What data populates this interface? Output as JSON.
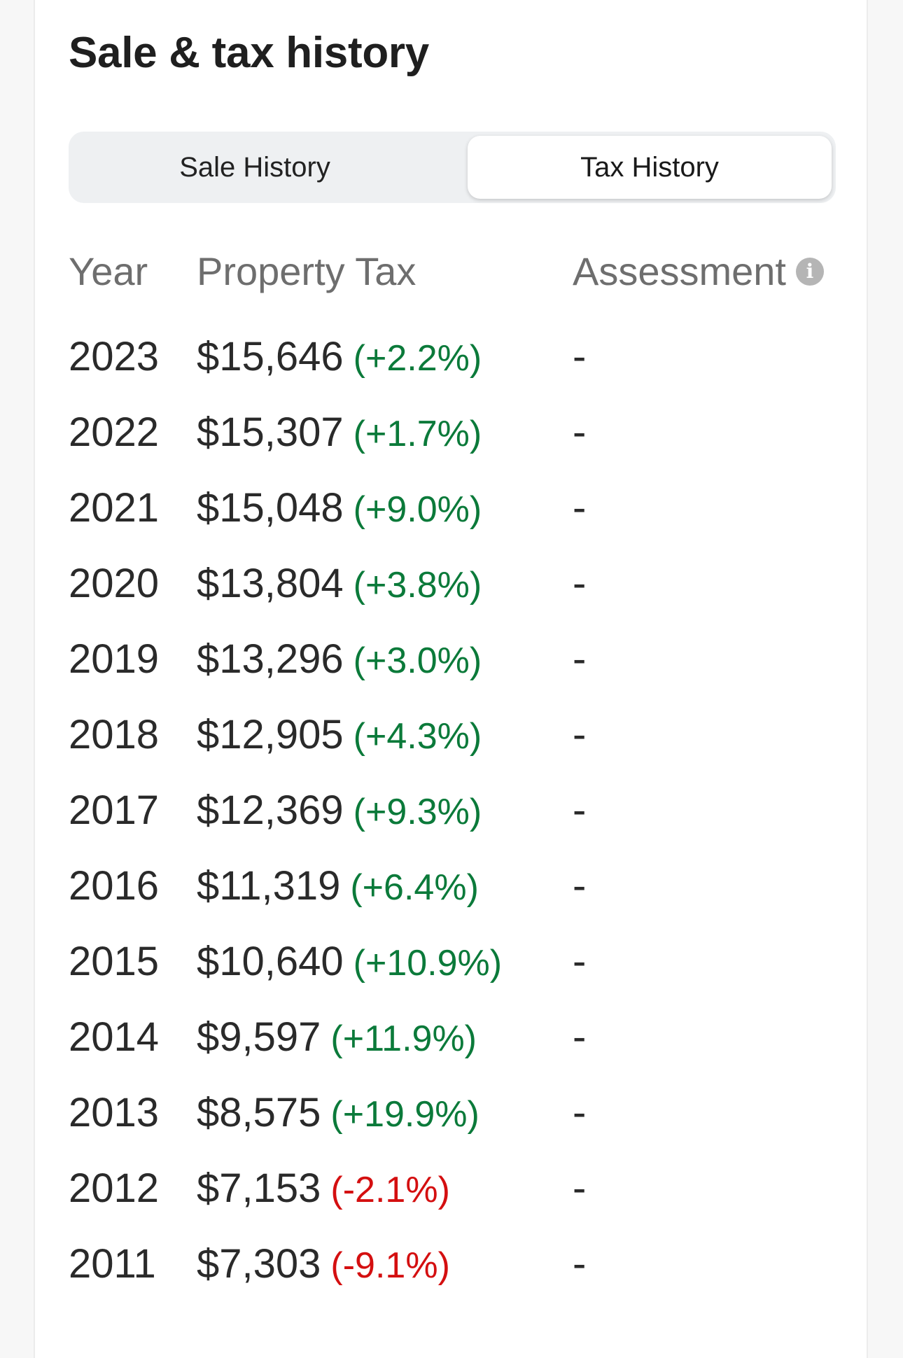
{
  "section": {
    "title": "Sale & tax history"
  },
  "tabs": [
    {
      "label": "Sale History",
      "selected": false
    },
    {
      "label": "Tax History",
      "selected": true
    }
  ],
  "table": {
    "columns": [
      "Year",
      "Property Tax",
      "Assessment"
    ],
    "info_icon": "info-icon",
    "rows": [
      {
        "year": "2023",
        "tax": "$15,646",
        "change": "(+2.2%)",
        "direction": "up",
        "assessment": "-"
      },
      {
        "year": "2022",
        "tax": "$15,307",
        "change": "(+1.7%)",
        "direction": "up",
        "assessment": "-"
      },
      {
        "year": "2021",
        "tax": "$15,048",
        "change": "(+9.0%)",
        "direction": "up",
        "assessment": "-"
      },
      {
        "year": "2020",
        "tax": "$13,804",
        "change": "(+3.8%)",
        "direction": "up",
        "assessment": "-"
      },
      {
        "year": "2019",
        "tax": "$13,296",
        "change": "(+3.0%)",
        "direction": "up",
        "assessment": "-"
      },
      {
        "year": "2018",
        "tax": "$12,905",
        "change": "(+4.3%)",
        "direction": "up",
        "assessment": "-"
      },
      {
        "year": "2017",
        "tax": "$12,369",
        "change": "(+9.3%)",
        "direction": "up",
        "assessment": "-"
      },
      {
        "year": "2016",
        "tax": "$11,319",
        "change": "(+6.4%)",
        "direction": "up",
        "assessment": "-"
      },
      {
        "year": "2015",
        "tax": "$10,640",
        "change": "(+10.9%)",
        "direction": "up",
        "assessment": "-"
      },
      {
        "year": "2014",
        "tax": "$9,597",
        "change": "(+11.9%)",
        "direction": "up",
        "assessment": "-"
      },
      {
        "year": "2013",
        "tax": "$8,575",
        "change": "(+19.9%)",
        "direction": "up",
        "assessment": "-"
      },
      {
        "year": "2012",
        "tax": "$7,153",
        "change": "(-2.1%)",
        "direction": "down",
        "assessment": "-"
      },
      {
        "year": "2011",
        "tax": "$7,303",
        "change": "(-9.1%)",
        "direction": "down",
        "assessment": "-"
      }
    ]
  },
  "colors": {
    "increase": "#0b7a3a",
    "decrease": "#d40f10",
    "header_text": "#6e6e6e"
  }
}
